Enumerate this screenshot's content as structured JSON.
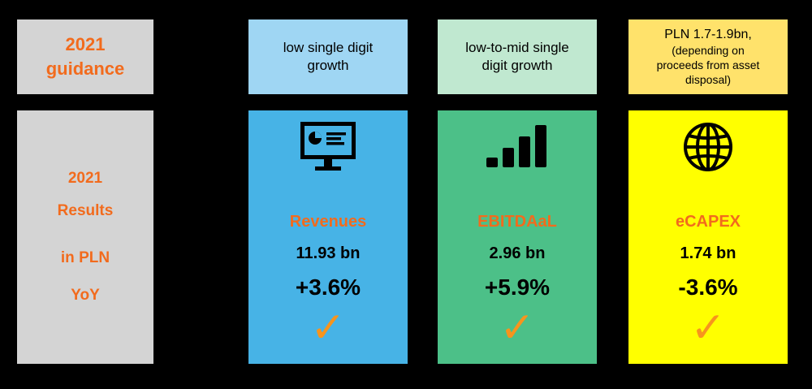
{
  "guidance_label": {
    "line1": "2021",
    "line2": "guidance"
  },
  "results_label": {
    "line1": "2021",
    "line2": "Results",
    "line3": "in PLN",
    "line4": "YoY"
  },
  "guidance": {
    "revenues": {
      "line1": "low single digit",
      "line2": "growth"
    },
    "ebitdaal": {
      "line1": "low-to-mid single",
      "line2": "digit growth"
    },
    "ecapex": {
      "line1": "PLN 1.7-1.9bn,",
      "line2": "(depending on",
      "line3": "proceeds from asset",
      "line4": "disposal)"
    }
  },
  "results": {
    "revenues": {
      "name": "Revenues",
      "value": "11.93 bn",
      "yoy": "+3.6%",
      "icon": "monitor-chart-icon",
      "check": "✓"
    },
    "ebitdaal": {
      "name": "EBITDAaL",
      "value": "2.96 bn",
      "yoy": "+5.9%",
      "icon": "bar-chart-icon",
      "check": "✓"
    },
    "ecapex": {
      "name": "eCAPEX",
      "value": "1.74 bn",
      "yoy": "-3.6%",
      "icon": "globe-icon",
      "check": "✓"
    }
  },
  "colors": {
    "label_bg": "#d4d4d4",
    "accent": "#f26b1d",
    "revenues_guidance": "#9fd6f3",
    "revenues_result": "#47b3e6",
    "ebitdaal_guidance": "#c0e8d0",
    "ebitdaal_result": "#4cc088",
    "ecapex_guidance": "#ffe26b",
    "ecapex_result": "#ffff00"
  }
}
